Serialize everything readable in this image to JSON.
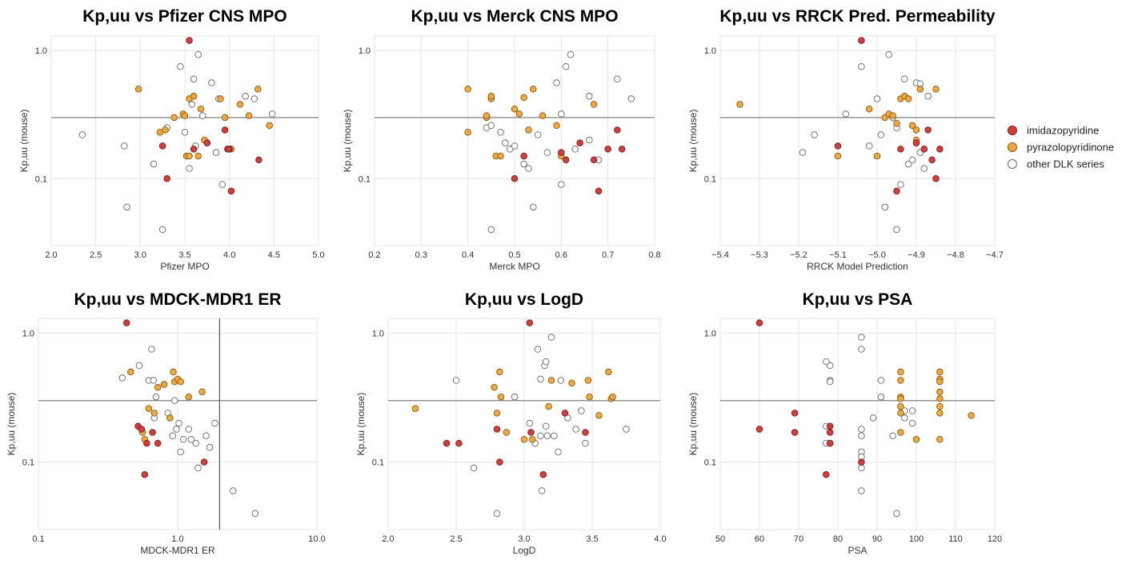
{
  "legend": {
    "items": [
      {
        "label": "imidazopyridine",
        "color": "#d93a3a"
      },
      {
        "label": "pyrazolopyridinone",
        "color": "#f0aa3c"
      },
      {
        "label": "other DLK series",
        "color": "#ffffff"
      }
    ]
  },
  "chart_data": [
    {
      "type": "scatter",
      "title": "Kp,uu vs Pfizer CNS MPO",
      "xlabel": "Pfizer MPO",
      "ylabel": "Kp,uu (mouse)",
      "xscale": "linear",
      "yscale": "log",
      "xlim": [
        2.0,
        5.0
      ],
      "ylim": [
        0.03,
        1.3
      ],
      "xticks": [
        2.0,
        2.5,
        3.0,
        3.5,
        4.0,
        4.5,
        5.0
      ],
      "xtick_labels": [
        "2.0",
        "2.5",
        "3.0",
        "3.5",
        "4.0",
        "4.5",
        "5.0"
      ],
      "yticks": [
        0.1,
        1.0
      ],
      "ytick_labels": [
        "0.1",
        "1.0"
      ],
      "hlines": [
        0.3
      ],
      "vlines": [],
      "series": [
        {
          "name": "imidazopyridine",
          "x": [
            3.55,
            3.25,
            3.3,
            3.6,
            3.75,
            3.95,
            4.0,
            3.98,
            4.02,
            4.33,
            3.99
          ],
          "y": [
            1.2,
            0.18,
            0.1,
            0.17,
            0.19,
            0.24,
            0.17,
            0.17,
            0.08,
            0.14,
            0.17
          ]
        },
        {
          "name": "pyrazolopyridinone",
          "x": [
            2.98,
            3.22,
            3.28,
            3.38,
            3.48,
            3.52,
            3.55,
            3.55,
            3.6,
            3.68,
            3.72,
            3.9,
            3.95,
            4.02,
            4.12,
            4.22,
            4.32,
            4.45,
            3.65,
            3.5
          ],
          "y": [
            0.5,
            0.23,
            0.24,
            0.3,
            0.32,
            0.15,
            0.15,
            0.42,
            0.44,
            0.35,
            0.2,
            0.42,
            0.3,
            0.17,
            0.38,
            0.31,
            0.5,
            0.26,
            0.15,
            0.31
          ]
        },
        {
          "name": "other DLK series",
          "x": [
            2.35,
            2.82,
            2.85,
            3.15,
            3.25,
            3.3,
            3.45,
            3.5,
            3.52,
            3.55,
            3.6,
            3.62,
            3.65,
            3.7,
            3.75,
            3.8,
            3.85,
            3.88,
            3.92,
            4.18,
            4.28,
            4.48,
            3.58
          ],
          "y": [
            0.22,
            0.18,
            0.06,
            0.13,
            0.04,
            0.25,
            0.75,
            0.23,
            0.15,
            0.12,
            0.6,
            0.18,
            0.93,
            0.31,
            0.19,
            0.56,
            0.16,
            0.42,
            0.09,
            0.44,
            0.42,
            0.32,
            0.38
          ]
        }
      ]
    },
    {
      "type": "scatter",
      "title": "Kp,uu vs Merck CNS MPO",
      "xlabel": "Merck MPO",
      "ylabel": "Kp,uu (mouse)",
      "xscale": "linear",
      "yscale": "log",
      "xlim": [
        0.2,
        0.8
      ],
      "ylim": [
        0.03,
        1.3
      ],
      "xticks": [
        0.2,
        0.3,
        0.4,
        0.5,
        0.6,
        0.7,
        0.8
      ],
      "xtick_labels": [
        "0.2",
        "0.3",
        "0.4",
        "0.5",
        "0.6",
        "0.7",
        "0.8"
      ],
      "yticks": [
        0.1,
        1.0
      ],
      "ytick_labels": [
        "0.1",
        "1.0"
      ],
      "hlines": [
        0.3
      ],
      "vlines": [],
      "series": [
        {
          "name": "imidazopyridine",
          "x": [
            0.5,
            0.52,
            0.6,
            0.61,
            0.64,
            0.67,
            0.68,
            0.7,
            0.72,
            0.73
          ],
          "y": [
            0.1,
            0.15,
            0.16,
            0.14,
            0.19,
            0.14,
            0.08,
            0.17,
            0.24,
            0.17
          ]
        },
        {
          "name": "pyrazolopyridinone",
          "x": [
            0.4,
            0.4,
            0.44,
            0.45,
            0.45,
            0.46,
            0.5,
            0.51,
            0.52,
            0.53,
            0.54,
            0.56,
            0.59,
            0.6,
            0.67,
            0.44,
            0.47
          ],
          "y": [
            0.5,
            0.23,
            0.3,
            0.42,
            0.44,
            0.15,
            0.35,
            0.32,
            0.43,
            0.24,
            0.5,
            0.31,
            0.26,
            0.15,
            0.38,
            0.31,
            0.15
          ]
        },
        {
          "name": "other DLK series",
          "x": [
            0.44,
            0.45,
            0.47,
            0.48,
            0.49,
            0.5,
            0.52,
            0.53,
            0.54,
            0.55,
            0.57,
            0.59,
            0.6,
            0.6,
            0.61,
            0.62,
            0.63,
            0.66,
            0.66,
            0.68,
            0.72,
            0.75,
            0.45
          ],
          "y": [
            0.25,
            0.04,
            0.23,
            0.19,
            0.17,
            0.18,
            0.13,
            0.12,
            0.06,
            0.22,
            0.16,
            0.56,
            0.32,
            0.09,
            0.75,
            0.93,
            0.17,
            0.44,
            0.2,
            0.14,
            0.6,
            0.42,
            0.26
          ]
        }
      ]
    },
    {
      "type": "scatter",
      "title": "Kp,uu vs RRCK Pred. Permeability",
      "xlabel": "RRCK Model Prediction",
      "ylabel": "Kp,uu (mouse)",
      "xscale": "linear",
      "yscale": "log",
      "xlim": [
        -5.4,
        -4.7
      ],
      "ylim": [
        0.03,
        1.3
      ],
      "xticks": [
        -5.4,
        -5.3,
        -5.2,
        -5.1,
        -5.0,
        -4.9,
        -4.8,
        -4.7
      ],
      "xtick_labels": [
        "−5.4",
        "−5.3",
        "−5.2",
        "−5.1",
        "−5.0",
        "−4.9",
        "−4.8",
        "−4.7"
      ],
      "yticks": [
        0.1,
        1.0
      ],
      "ytick_labels": [
        "0.1",
        "1.0"
      ],
      "hlines": [
        0.3
      ],
      "vlines": [],
      "series": [
        {
          "name": "imidazopyridine",
          "x": [
            -5.04,
            -5.1,
            -4.95,
            -4.9,
            -4.88,
            -4.87,
            -4.86,
            -4.85,
            -4.84,
            -4.94
          ],
          "y": [
            1.2,
            0.18,
            0.08,
            0.19,
            0.17,
            0.24,
            0.14,
            0.1,
            0.17,
            0.17
          ]
        },
        {
          "name": "pyrazolopyridinone",
          "x": [
            -5.35,
            -5.1,
            -5.02,
            -5.0,
            -4.98,
            -4.97,
            -4.96,
            -4.95,
            -4.94,
            -4.93,
            -4.92,
            -4.91,
            -4.9,
            -4.9,
            -4.89,
            -4.85
          ],
          "y": [
            0.38,
            0.15,
            0.35,
            0.15,
            0.3,
            0.32,
            0.31,
            0.27,
            0.42,
            0.44,
            0.42,
            0.26,
            0.24,
            0.2,
            0.5,
            0.5
          ]
        },
        {
          "name": "other DLK series",
          "x": [
            -5.19,
            -5.16,
            -5.08,
            -5.04,
            -5.02,
            -5.0,
            -4.99,
            -4.98,
            -4.97,
            -4.96,
            -4.95,
            -4.94,
            -4.93,
            -4.92,
            -4.91,
            -4.9,
            -4.89,
            -4.88,
            -4.87,
            -4.95,
            -4.9,
            -4.89,
            -4.88
          ],
          "y": [
            0.16,
            0.22,
            0.32,
            0.75,
            0.18,
            0.42,
            0.22,
            0.06,
            0.93,
            0.3,
            0.04,
            0.09,
            0.6,
            0.13,
            0.14,
            0.19,
            0.16,
            0.12,
            0.44,
            0.25,
            0.56,
            0.55,
            0.17
          ]
        }
      ]
    },
    {
      "type": "scatter",
      "title": "Kp,uu vs MDCK-MDR1 ER",
      "xlabel": "MDCK-MDR1 ER",
      "ylabel": "Kp,uu (mouse)",
      "xscale": "log",
      "yscale": "log",
      "xlim": [
        0.1,
        10.0
      ],
      "ylim": [
        0.03,
        1.3
      ],
      "xticks": [
        0.1,
        1.0,
        10.0
      ],
      "xtick_labels": [
        "0.1",
        "1.0",
        "10.0"
      ],
      "yticks": [
        0.1,
        1.0
      ],
      "ytick_labels": [
        "0.1",
        "1.0"
      ],
      "hlines": [
        0.3
      ],
      "vlines": [
        2.0
      ],
      "series": [
        {
          "name": "imidazopyridine",
          "x": [
            0.43,
            0.52,
            0.55,
            0.58,
            0.6,
            0.66,
            0.72,
            1.55
          ],
          "y": [
            1.2,
            0.19,
            0.18,
            0.08,
            0.14,
            0.17,
            0.14,
            0.1
          ]
        },
        {
          "name": "pyrazolopyridinone",
          "x": [
            0.46,
            0.58,
            0.62,
            0.68,
            0.72,
            0.88,
            0.93,
            0.95,
            1.0,
            1.05,
            1.2,
            1.5,
            0.56,
            0.8
          ],
          "y": [
            0.5,
            0.15,
            0.26,
            0.24,
            0.38,
            0.22,
            0.5,
            0.42,
            0.44,
            0.42,
            0.32,
            0.35,
            0.17,
            0.4
          ]
        },
        {
          "name": "other DLK series",
          "x": [
            0.4,
            0.53,
            0.62,
            0.65,
            0.67,
            0.7,
            0.85,
            0.92,
            0.98,
            1.02,
            1.05,
            1.1,
            1.2,
            1.35,
            1.4,
            1.6,
            1.7,
            1.85,
            2.5,
            3.6,
            0.95,
            1.25,
            0.68
          ],
          "y": [
            0.45,
            0.56,
            0.43,
            0.75,
            0.43,
            0.32,
            0.24,
            0.16,
            0.18,
            0.2,
            0.12,
            0.15,
            0.18,
            0.14,
            0.09,
            0.16,
            0.13,
            0.2,
            0.06,
            0.04,
            0.3,
            0.15,
            0.22
          ]
        }
      ]
    },
    {
      "type": "scatter",
      "title": "Kp,uu vs LogD",
      "xlabel": "LogD",
      "ylabel": "Kp,uu (mouse)",
      "xscale": "linear",
      "yscale": "log",
      "xlim": [
        2.0,
        4.0
      ],
      "ylim": [
        0.03,
        1.3
      ],
      "xticks": [
        2.0,
        2.5,
        3.0,
        3.5,
        4.0
      ],
      "xtick_labels": [
        "2.0",
        "2.5",
        "3.0",
        "3.5",
        "4.0"
      ],
      "yticks": [
        0.1,
        1.0
      ],
      "ytick_labels": [
        "0.1",
        "1.0"
      ],
      "hlines": [
        0.3
      ],
      "vlines": [],
      "series": [
        {
          "name": "imidazopyridine",
          "x": [
            2.43,
            2.52,
            2.8,
            2.82,
            3.04,
            3.05,
            3.14,
            3.3,
            3.45
          ],
          "y": [
            0.14,
            0.14,
            0.18,
            0.1,
            1.2,
            0.17,
            0.08,
            0.24,
            0.17
          ]
        },
        {
          "name": "pyrazolopyridinone",
          "x": [
            2.2,
            2.78,
            2.82,
            2.83,
            2.87,
            3.0,
            3.06,
            3.18,
            3.2,
            3.35,
            3.47,
            3.48,
            3.55,
            3.62,
            3.64,
            3.65,
            2.8
          ],
          "y": [
            0.26,
            0.38,
            0.5,
            0.32,
            0.17,
            0.15,
            0.15,
            0.27,
            0.43,
            0.41,
            0.43,
            0.32,
            0.23,
            0.5,
            0.31,
            0.32,
            0.24
          ]
        },
        {
          "name": "other DLK series",
          "x": [
            2.5,
            2.63,
            2.8,
            2.93,
            3.04,
            3.08,
            3.1,
            3.12,
            3.13,
            3.15,
            3.16,
            3.17,
            3.2,
            3.22,
            3.25,
            3.27,
            3.32,
            3.38,
            3.42,
            3.45,
            3.75,
            3.12,
            3.16
          ],
          "y": [
            0.43,
            0.09,
            0.04,
            0.32,
            0.2,
            0.14,
            0.75,
            0.16,
            0.06,
            0.56,
            0.6,
            0.16,
            0.93,
            0.16,
            0.12,
            0.43,
            0.22,
            0.18,
            0.25,
            0.14,
            0.18,
            0.44,
            0.19
          ]
        }
      ]
    },
    {
      "type": "scatter",
      "title": "Kp,uu vs PSA",
      "xlabel": "PSA",
      "ylabel": "Kp,uu (mouse)",
      "xscale": "linear",
      "yscale": "log",
      "xlim": [
        50,
        120
      ],
      "ylim": [
        0.03,
        1.3
      ],
      "xticks": [
        50,
        60,
        70,
        80,
        90,
        100,
        110,
        120
      ],
      "xtick_labels": [
        "50",
        "60",
        "70",
        "80",
        "90",
        "100",
        "110",
        "120"
      ],
      "yticks": [
        0.1,
        1.0
      ],
      "ytick_labels": [
        "0.1",
        "1.0"
      ],
      "hlines": [
        0.3
      ],
      "vlines": [],
      "series": [
        {
          "name": "imidazopyridine",
          "x": [
            60,
            60,
            69,
            69,
            77,
            78,
            78,
            78,
            86,
            78
          ],
          "y": [
            1.2,
            0.18,
            0.24,
            0.17,
            0.08,
            0.19,
            0.17,
            0.14,
            0.1,
            0.14
          ]
        },
        {
          "name": "pyrazolopyridinone",
          "x": [
            96,
            96,
            96,
            96,
            96,
            96,
            96,
            100,
            106,
            106,
            106,
            106,
            106,
            106,
            106,
            106,
            114
          ],
          "y": [
            0.5,
            0.43,
            0.32,
            0.31,
            0.27,
            0.24,
            0.17,
            0.15,
            0.5,
            0.44,
            0.42,
            0.35,
            0.31,
            0.27,
            0.24,
            0.15,
            0.23
          ]
        },
        {
          "name": "other DLK series",
          "x": [
            77,
            77,
            77,
            78,
            78,
            78,
            86,
            86,
            86,
            86,
            86,
            86,
            86,
            86,
            89,
            91,
            91,
            94,
            95,
            97,
            97,
            99,
            99
          ],
          "y": [
            0.6,
            0.19,
            0.14,
            0.56,
            0.43,
            0.42,
            0.93,
            0.75,
            0.18,
            0.16,
            0.12,
            0.11,
            0.09,
            0.06,
            0.22,
            0.43,
            0.32,
            0.16,
            0.04,
            0.22,
            0.25,
            0.2,
            0.25
          ]
        }
      ]
    }
  ]
}
